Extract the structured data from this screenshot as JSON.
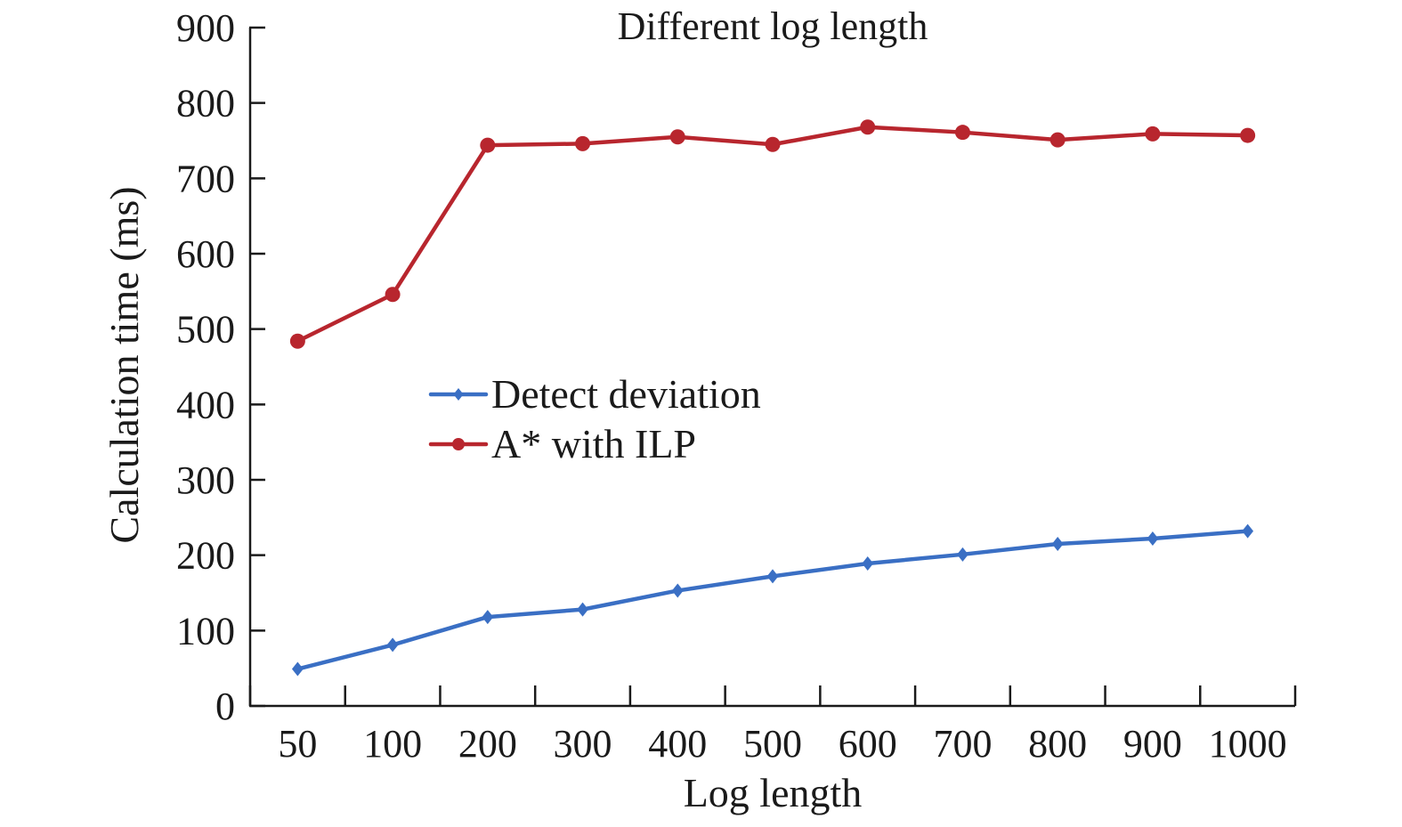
{
  "chart_data": {
    "type": "line",
    "title": "Different log length",
    "xlabel": "Log length",
    "ylabel": "Calculation time (ms)",
    "categories": [
      "50",
      "100",
      "200",
      "300",
      "400",
      "500",
      "600",
      "700",
      "800",
      "900",
      "1000"
    ],
    "yticks": [
      "0",
      "100",
      "200",
      "300",
      "400",
      "500",
      "600",
      "700",
      "800",
      "900"
    ],
    "ylim": [
      0,
      900
    ],
    "grid": false,
    "legend_position": "center-left",
    "series": [
      {
        "name": "Detect deviation",
        "color": "#3a6fc4",
        "marker": "diamond",
        "values": [
          49,
          81,
          118,
          128,
          153,
          172,
          189,
          201,
          215,
          222,
          232
        ]
      },
      {
        "name": "A* with ILP",
        "color": "#b8262e",
        "marker": "circle",
        "values": [
          484,
          546,
          744,
          746,
          755,
          745,
          768,
          761,
          751,
          759,
          757
        ]
      }
    ]
  }
}
